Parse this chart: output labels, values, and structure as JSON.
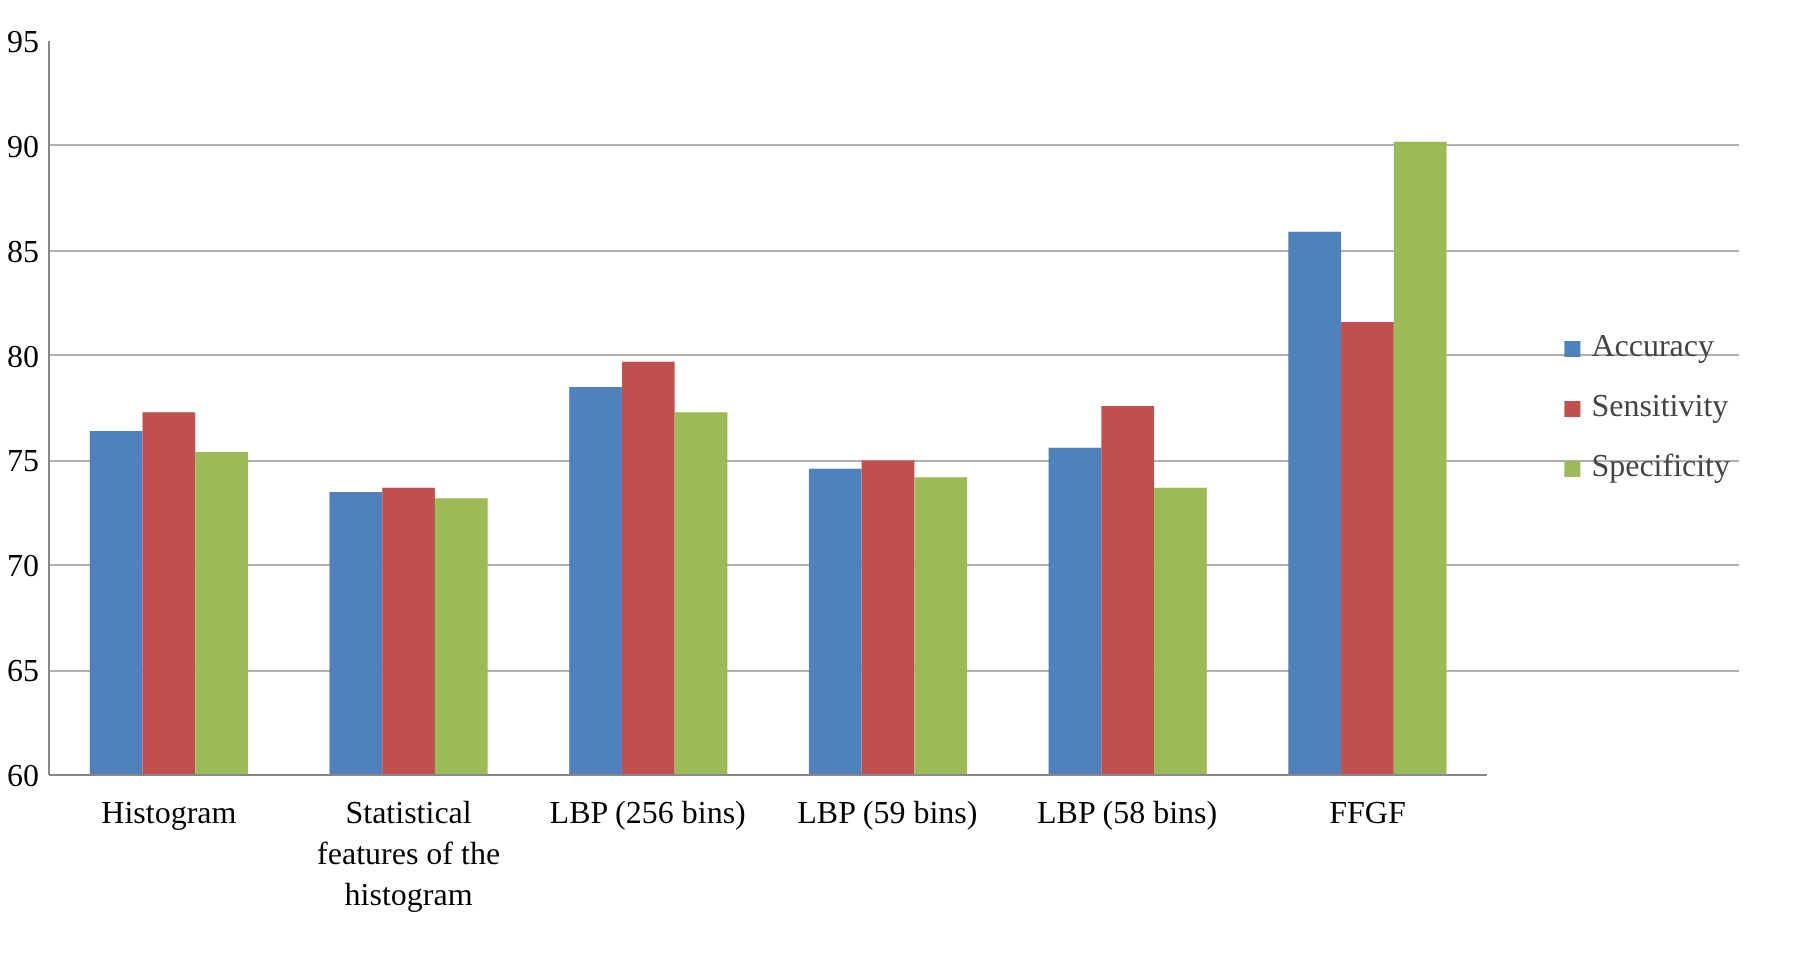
{
  "chart_data": {
    "type": "bar",
    "categories": [
      "Histogram",
      "Statistical features of the histogram",
      "LBP (256 bins)",
      "LBP (59 bins)",
      "LBP (58 bins)",
      "FFGF"
    ],
    "series": [
      {
        "name": "Accuracy",
        "color": "#4f81bd",
        "values": [
          76.4,
          73.5,
          78.5,
          74.6,
          75.6,
          85.9
        ]
      },
      {
        "name": "Sensitivity",
        "color": "#c0504d",
        "values": [
          77.3,
          73.7,
          79.7,
          75.0,
          77.6,
          81.6
        ]
      },
      {
        "name": "Specificity",
        "color": "#9bbb59",
        "values": [
          75.4,
          73.2,
          77.3,
          74.2,
          73.7,
          90.2
        ]
      }
    ],
    "ylim": [
      60,
      95
    ],
    "yticks": [
      60,
      65,
      70,
      75,
      80,
      85,
      90,
      95
    ],
    "grid": "y",
    "legend": "right"
  }
}
